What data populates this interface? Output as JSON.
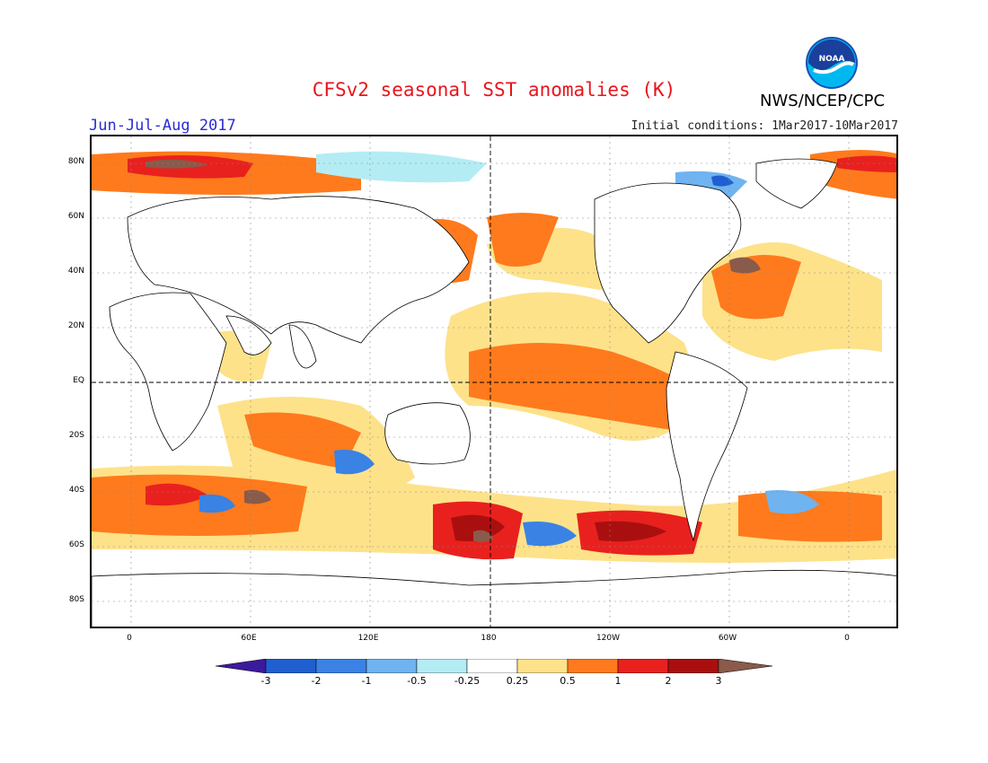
{
  "header": {
    "title": "CFSv2 seasonal SST anomalies (K)",
    "agency": "NWS/NCEP/CPC",
    "season": "Jun-Jul-Aug 2017",
    "initial_conditions": "Initial conditions: 1Mar2017-10Mar2017",
    "logo_text": "NOAA"
  },
  "axes": {
    "lat_labels": [
      "80N",
      "60N",
      "40N",
      "20N",
      "EQ",
      "20S",
      "40S",
      "60S",
      "80S"
    ],
    "lon_labels": [
      "0",
      "60E",
      "120E",
      "180",
      "120W",
      "60W",
      "0"
    ]
  },
  "colorbar": {
    "labels": [
      "-3",
      "-2",
      "-1",
      "-0.5",
      "-0.25",
      "0.25",
      "0.5",
      "1",
      "2",
      "3"
    ],
    "colors": [
      "#3c1a9c",
      "#1f5fd0",
      "#3a82e4",
      "#6fb3f0",
      "#b4ecf4",
      "#ffffff",
      "#fde28a",
      "#ff7a1c",
      "#e8211e",
      "#aa0f0f",
      "#8a5a4a"
    ]
  }
}
